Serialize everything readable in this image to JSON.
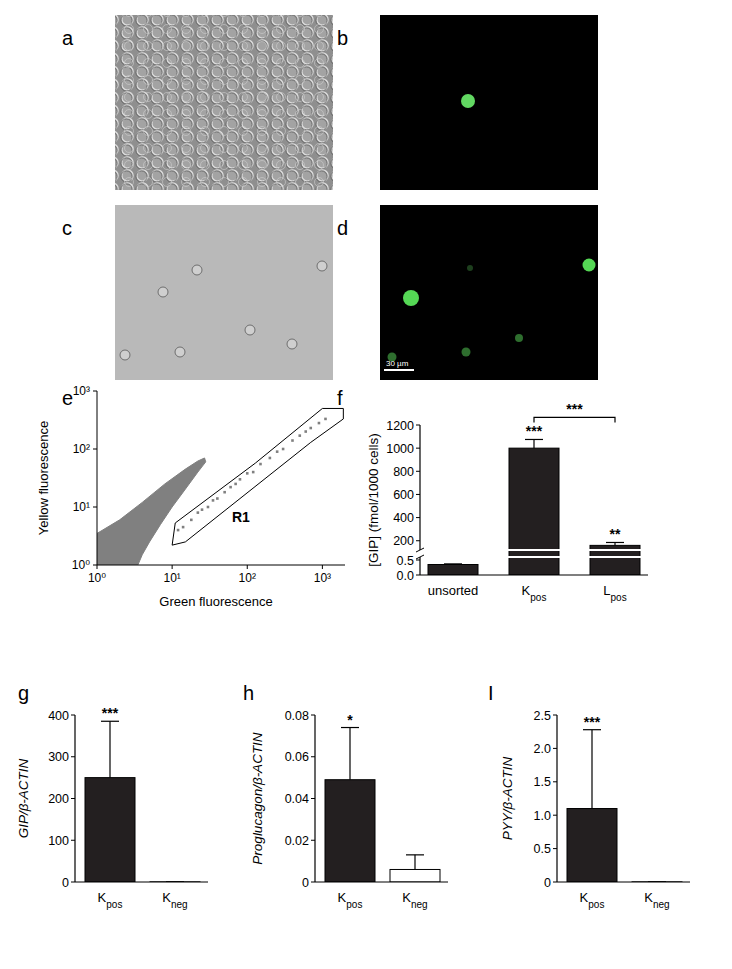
{
  "panel_labels": [
    "a",
    "b",
    "c",
    "d",
    "e",
    "f",
    "g",
    "h",
    "I"
  ],
  "scale_bar": "30 µm",
  "chart_data": [
    {
      "type": "scatter",
      "x_label": "Green fluorescence",
      "y_label": "Yellow fluorescence",
      "log": true,
      "xlim": [
        1,
        2000
      ],
      "ylim": [
        1,
        1000
      ],
      "xticks": [
        {
          "value": 1,
          "label": "10⁰"
        },
        {
          "value": 10,
          "label": "10¹"
        },
        {
          "value": 100,
          "label": "10²"
        },
        {
          "value": 1000,
          "label": "10³"
        }
      ],
      "yticks": [
        {
          "value": 1,
          "label": "10⁰"
        },
        {
          "value": 10,
          "label": "10¹"
        },
        {
          "value": 100,
          "label": "10²"
        },
        {
          "value": 1000,
          "label": "10³"
        }
      ],
      "series": [
        {
          "type": "area",
          "color": "#808080",
          "x": [
            1,
            1,
            2,
            4,
            8,
            15,
            22,
            27,
            28,
            22,
            14,
            10,
            7,
            5,
            4,
            3.5
          ],
          "values": [
            1,
            3.5,
            6,
            12,
            25,
            45,
            62,
            70,
            60,
            40,
            18,
            10,
            5,
            2.5,
            1.5,
            1
          ]
        },
        {
          "type": "polygon",
          "name": "R1",
          "color": "#000000",
          "line_style": "solid",
          "x": [
            10,
            11,
            128,
            1000,
            1900,
            1900,
            700,
            15
          ],
          "values": [
            2.2,
            5.3,
            57,
            500,
            500,
            330,
            130,
            2.5
          ]
        },
        {
          "type": "scatter",
          "color": "#808080",
          "marker": "square",
          "x": [
            12,
            14,
            18,
            22,
            25,
            30,
            35,
            40,
            50,
            60,
            70,
            80,
            100,
            120,
            150,
            200,
            250,
            300,
            400,
            500,
            600,
            700,
            900,
            1100
          ],
          "values": [
            4,
            4.5,
            6,
            8,
            9,
            10,
            13,
            14,
            18,
            22,
            25,
            30,
            38,
            40,
            55,
            70,
            90,
            100,
            140,
            170,
            200,
            230,
            280,
            330
          ]
        }
      ]
    },
    {
      "type": "bar",
      "y_label": "[GIP] (fmol/1000 cells)",
      "categories": [
        "unsorted",
        "Kpos",
        "Lpos"
      ],
      "values": [
        0.35,
        1000,
        160
      ],
      "errors": [
        0.02,
        75,
        25
      ],
      "color": "#231f20",
      "ylim": [
        0,
        1200
      ],
      "axis_break": [
        0.6,
        120
      ],
      "yticks": [
        {
          "value": 0,
          "label": "0.0"
        },
        0.5,
        200,
        400,
        600,
        800,
        1000,
        1200
      ],
      "annotations": [
        {
          "text": "***",
          "category": 1
        },
        {
          "text": "**",
          "category": 2
        },
        {
          "text": "***",
          "between": [
            1,
            2
          ]
        }
      ]
    },
    {
      "type": "bar",
      "y_label": "GIP/β-ACTIN",
      "categories": [
        "Kpos",
        "Kneg"
      ],
      "values": [
        250,
        0.3
      ],
      "errors": [
        135,
        0.2
      ],
      "colors": [
        "#231f20",
        "#231f20"
      ],
      "ylim": [
        0,
        400
      ],
      "yticks": [
        0,
        100,
        200,
        300,
        400
      ],
      "annotations": [
        {
          "text": "***",
          "category": 0
        }
      ]
    },
    {
      "type": "bar",
      "y_label": "Proglucagon/β-ACTIN",
      "categories": [
        "Kpos",
        "Kneg"
      ],
      "values": [
        0.049,
        0.006
      ],
      "errors": [
        0.025,
        0.007
      ],
      "colors": [
        "#231f20",
        "#ffffff"
      ],
      "ylim": [
        0,
        0.08
      ],
      "yticks": [
        0,
        0.02,
        0.04,
        0.06,
        0.08
      ],
      "annotations": [
        {
          "text": "*",
          "category": 0
        }
      ]
    },
    {
      "type": "bar",
      "y_label": "PYY/β-ACTIN",
      "categories": [
        "Kpos",
        "Kneg"
      ],
      "values": [
        1.1,
        0.002
      ],
      "errors": [
        1.18,
        0.001
      ],
      "colors": [
        "#231f20",
        "#231f20"
      ],
      "ylim": [
        0,
        2.5
      ],
      "yticks": [
        0,
        0.5,
        {
          "value": 1,
          "label": "1.0"
        },
        1.5,
        {
          "value": 2,
          "label": "2.0"
        },
        2.5
      ],
      "annotations": [
        {
          "text": "***",
          "category": 0
        }
      ]
    }
  ]
}
